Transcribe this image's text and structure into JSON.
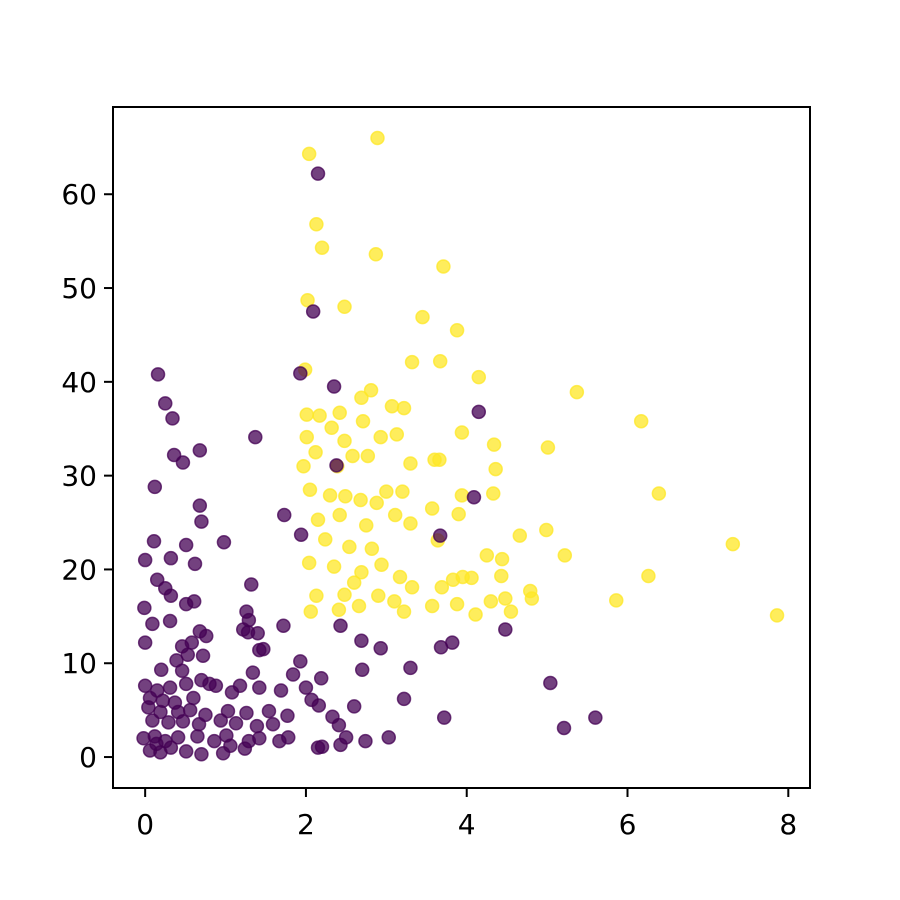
{
  "chart_data": {
    "type": "scatter",
    "xlim": [
      -0.4,
      8.27
    ],
    "ylim": [
      -3.3,
      69.3
    ],
    "xticks": [
      0,
      2,
      4,
      6,
      8
    ],
    "yticks": [
      0,
      10,
      20,
      30,
      40,
      50,
      60
    ],
    "alpha": 0.75,
    "series": [
      {
        "color": "#fde725",
        "x": [
          2.04,
          2.89,
          2.13,
          2.2,
          2.87,
          3.71,
          2.02,
          2.48,
          3.45,
          3.88,
          1.99,
          3.32,
          3.67,
          4.15,
          2.81,
          2.69,
          5.37,
          6.17,
          3.07,
          3.22,
          2.01,
          2.17,
          2.42,
          2.71,
          2.32,
          2.01,
          2.93,
          3.13,
          3.94,
          4.34,
          5.01,
          2.48,
          2.12,
          2.58,
          2.77,
          3.6,
          3.3,
          3.66,
          4.36,
          1.97,
          2.39,
          6.39,
          3.94,
          4.33,
          3.0,
          3.2,
          3.57,
          2.05,
          2.3,
          2.49,
          2.68,
          2.88,
          3.9,
          3.3,
          4.99,
          4.66,
          7.31,
          2.15,
          2.42,
          2.75,
          3.11,
          2.24,
          2.54,
          2.82,
          3.64,
          4.25,
          4.44,
          5.22,
          2.04,
          2.35,
          2.69,
          2.94,
          3.17,
          3.83,
          3.95,
          4.06,
          4.43,
          6.26,
          3.69,
          3.32,
          2.6,
          2.13,
          2.48,
          2.9,
          3.1,
          3.57,
          3.88,
          4.3,
          4.48,
          4.81,
          5.86,
          2.06,
          2.41,
          3.22,
          4.11,
          4.55,
          7.86,
          2.66,
          4.79
        ],
        "values": [
          64.3,
          66.0,
          56.8,
          54.3,
          53.6,
          52.3,
          48.7,
          48.0,
          46.9,
          45.5,
          41.3,
          42.1,
          42.2,
          40.5,
          39.1,
          38.3,
          38.9,
          35.8,
          37.4,
          37.2,
          36.5,
          36.4,
          36.7,
          35.8,
          35.1,
          34.1,
          34.1,
          34.4,
          34.6,
          33.3,
          33.0,
          33.7,
          32.5,
          32.1,
          32.1,
          31.7,
          31.3,
          31.7,
          30.7,
          31.0,
          31.0,
          28.1,
          27.9,
          28.1,
          28.3,
          28.3,
          26.5,
          28.5,
          27.9,
          27.8,
          27.4,
          27.1,
          25.9,
          24.9,
          24.2,
          23.6,
          22.7,
          25.3,
          25.8,
          24.7,
          25.8,
          23.2,
          22.4,
          22.2,
          23.1,
          21.5,
          21.1,
          21.5,
          20.7,
          20.3,
          19.7,
          20.5,
          19.2,
          18.9,
          19.2,
          19.1,
          19.3,
          19.3,
          18.1,
          18.1,
          18.6,
          17.2,
          17.3,
          17.2,
          16.6,
          16.1,
          16.3,
          16.6,
          16.9,
          16.9,
          16.7,
          15.5,
          15.7,
          15.5,
          15.2,
          15.5,
          15.1,
          16.1,
          17.7
        ]
      },
      {
        "color": "#440154",
        "x": [
          2.15,
          2.09,
          1.93,
          0.16,
          2.35,
          0.25,
          0.34,
          4.15,
          1.37,
          0.36,
          0.68,
          0.47,
          2.38,
          0.12,
          4.09,
          0.68,
          0.7,
          1.73,
          1.94,
          3.67,
          0.11,
          0.51,
          0.98,
          0.0,
          0.32,
          0.62,
          0.15,
          0.25,
          0.32,
          1.32,
          0.51,
          0.61,
          -0.01,
          0.31,
          1.26,
          1.29,
          1.72,
          2.43,
          4.48,
          0.09,
          0.68,
          1.28,
          1.4,
          0.0,
          0.58,
          0.76,
          1.22,
          2.69,
          2.93,
          3.82,
          3.68,
          1.42,
          1.47,
          0.46,
          0.53,
          0.72,
          0.39,
          1.93,
          3.3,
          2.7,
          0.2,
          0.46,
          1.34,
          1.84,
          2.19,
          0.7,
          0.8,
          0.88,
          5.04,
          0.0,
          0.15,
          0.31,
          0.51,
          1.08,
          1.18,
          1.42,
          1.69,
          2.0,
          2.07,
          2.16,
          0.06,
          0.22,
          0.37,
          0.6,
          0.04,
          0.19,
          0.41,
          0.56,
          0.75,
          1.03,
          1.26,
          1.54,
          2.6,
          3.22,
          5.6,
          3.72,
          2.33,
          2.41,
          5.21,
          0.09,
          0.29,
          0.47,
          0.67,
          0.94,
          1.13,
          1.39,
          1.59,
          1.77,
          -0.02,
          0.12,
          0.25,
          0.41,
          0.65,
          0.86,
          1.01,
          1.42,
          1.67,
          1.78,
          2.5,
          3.03,
          2.74,
          2.43,
          2.2,
          2.15,
          0.06,
          0.19,
          0.32,
          0.51,
          0.7,
          0.97,
          1.24,
          0.14,
          1.06,
          1.29
        ],
        "values": [
          62.2,
          47.5,
          40.9,
          40.8,
          39.5,
          37.7,
          36.1,
          36.8,
          34.1,
          32.2,
          32.7,
          31.4,
          31.1,
          28.8,
          27.7,
          26.8,
          25.1,
          25.8,
          23.7,
          23.6,
          23.0,
          22.6,
          22.9,
          21.0,
          21.2,
          20.6,
          18.9,
          18.0,
          17.2,
          18.4,
          16.3,
          16.6,
          15.9,
          14.5,
          15.5,
          14.6,
          14.0,
          14.0,
          13.6,
          14.2,
          13.4,
          13.3,
          13.2,
          12.2,
          12.2,
          12.9,
          13.6,
          12.4,
          11.6,
          12.2,
          11.7,
          11.4,
          11.5,
          11.8,
          10.9,
          10.8,
          10.3,
          10.2,
          9.5,
          9.3,
          9.3,
          9.2,
          9.0,
          8.8,
          8.4,
          8.2,
          7.8,
          7.6,
          7.9,
          7.6,
          7.1,
          7.4,
          7.8,
          6.9,
          7.6,
          7.4,
          7.1,
          7.4,
          6.1,
          5.5,
          6.3,
          6.0,
          5.8,
          6.3,
          5.3,
          4.8,
          4.8,
          5.0,
          4.5,
          4.9,
          4.7,
          4.9,
          5.4,
          6.2,
          4.2,
          4.2,
          4.3,
          3.4,
          3.1,
          3.9,
          3.7,
          3.8,
          3.5,
          3.9,
          3.6,
          3.3,
          3.5,
          4.4,
          2.0,
          2.2,
          1.7,
          2.1,
          2.2,
          1.7,
          2.3,
          2.0,
          1.7,
          2.1,
          2.1,
          2.1,
          1.7,
          1.3,
          1.1,
          1.0,
          0.7,
          0.5,
          1.0,
          0.6,
          0.3,
          0.4,
          0.9,
          1.4,
          1.2,
          1.7
        ]
      }
    ]
  }
}
